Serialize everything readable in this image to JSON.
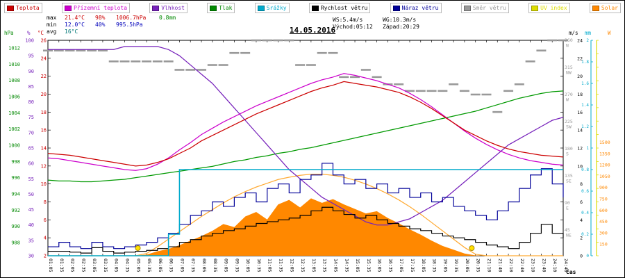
{
  "title": "14.05.2016",
  "xlabel": "čas",
  "legend": {
    "items": [
      {
        "key": "temperature",
        "label": "Teplota",
        "color": "#cc0000"
      },
      {
        "key": "ground-temperature",
        "label": "Přízemní teplota",
        "color": "#cc00cc"
      },
      {
        "key": "humidity",
        "label": "Vlhkost",
        "color": "#7722bb"
      },
      {
        "key": "pressure",
        "label": "Tlak",
        "color": "#008800"
      },
      {
        "key": "rain",
        "label": "Srážky",
        "color": "#00aacc"
      },
      {
        "key": "wind-speed",
        "label": "Rychlost větru",
        "color": "#000000"
      },
      {
        "key": "wind-gust",
        "label": "Náraz větru",
        "color": "#000099"
      },
      {
        "key": "wind-direction",
        "label": "Směr větru",
        "color": "#999999"
      },
      {
        "key": "uv-index",
        "label": "UV index",
        "color": "#dddd00"
      },
      {
        "key": "solar",
        "label": "Solar",
        "color": "#ff8800"
      }
    ]
  },
  "stats": {
    "max_label": "max",
    "max_temp": "21.4°C",
    "max_humidity": "98%",
    "max_pressure": "1006.7hPa",
    "max_rain": "0.8mm",
    "min_label": "min",
    "min_temp": "12.0°C",
    "min_humidity": "40%",
    "min_pressure": "995.5hPa",
    "avg_label": "avg",
    "avg_temp": "16°C",
    "wind_speed": "WS:5.4m/s",
    "wind_gust": "WG:10.3m/s",
    "sunrise": "Východ:05:12",
    "sunset": "Západ:20:29"
  },
  "axes": {
    "hpa": {
      "header": "hPa",
      "color": "#008800",
      "labels": [
        1012,
        1010,
        1008,
        1006,
        1004,
        1002,
        1000,
        998,
        996,
        994,
        992,
        990,
        988
      ]
    },
    "humidity": {
      "header": "%",
      "color": "#7722bb",
      "labels": [
        100,
        95,
        90,
        85,
        80,
        75,
        70,
        65,
        60,
        55,
        50,
        45,
        40,
        35,
        30
      ]
    },
    "temp": {
      "header": "°C",
      "color": "#cc0000",
      "labels": [
        26,
        24,
        22,
        20,
        18,
        16,
        14,
        12,
        10,
        8,
        6,
        4,
        2
      ]
    },
    "wind_dir": {
      "color": "#999999",
      "labels": [
        {
          "deg": 360,
          "txt": "N"
        },
        {
          "deg": 315,
          "txt": "NW"
        },
        {
          "deg": 270,
          "txt": "W"
        },
        {
          "deg": 225,
          "txt": "SW"
        },
        {
          "deg": 180,
          "txt": "S"
        },
        {
          "deg": 135,
          "txt": "SE"
        },
        {
          "deg": 90,
          "txt": "E"
        },
        {
          "deg": 45,
          "txt": "NE"
        }
      ]
    },
    "wind": {
      "header": "m/s",
      "color": "#000000",
      "labels": [
        24,
        22,
        20,
        18,
        16,
        14,
        12,
        10,
        8,
        6,
        4,
        2,
        0
      ]
    },
    "rain": {
      "header": "mm",
      "color": "#00aacc",
      "labels": [
        2,
        1.8,
        1.6,
        1.4,
        1.2,
        1,
        0.8,
        0.6,
        0.4,
        0.2,
        0
      ]
    },
    "solar": {
      "header": "W",
      "color": "#ff8800",
      "labels": [
        1500,
        1350,
        1200,
        1050,
        900,
        750,
        600,
        450,
        300,
        150
      ]
    }
  },
  "chart_data": {
    "type": "line",
    "title": "14.05.2016",
    "x": [
      "01:05",
      "01:35",
      "02:05",
      "02:35",
      "03:05",
      "03:35",
      "04:05",
      "04:35",
      "05:05",
      "05:35",
      "06:05",
      "06:35",
      "07:05",
      "07:35",
      "08:05",
      "08:35",
      "09:05",
      "09:35",
      "10:05",
      "10:35",
      "11:05",
      "11:35",
      "12:05",
      "12:35",
      "13:05",
      "13:35",
      "14:05",
      "14:35",
      "15:05",
      "15:35",
      "16:05",
      "16:35",
      "17:05",
      "17:35",
      "18:05",
      "18:35",
      "19:05",
      "19:35",
      "20:05",
      "20:35",
      "21:10",
      "21:40",
      "22:10",
      "22:40",
      "23:10",
      "23:40",
      "24:10",
      "24:40"
    ],
    "axis_ranges": {
      "temp": [
        2,
        26
      ],
      "humidity": [
        30,
        100
      ],
      "pressure": [
        988,
        1012
      ],
      "rain": [
        0,
        2
      ],
      "wind": [
        0,
        24
      ],
      "wind_dir": [
        0,
        360
      ],
      "solar": [
        0,
        1500
      ]
    },
    "series": [
      {
        "key": "solar",
        "name": "Solar",
        "unit": "W",
        "color": "#ff8800",
        "axis": "solar",
        "style": "area",
        "values": [
          0,
          0,
          0,
          0,
          0,
          0,
          0,
          0,
          0,
          15,
          60,
          90,
          140,
          200,
          260,
          330,
          420,
          380,
          520,
          580,
          480,
          680,
          740,
          640,
          760,
          700,
          750,
          680,
          620,
          560,
          590,
          500,
          430,
          350,
          280,
          200,
          130,
          80,
          30,
          5,
          0,
          0,
          0,
          0,
          0,
          0,
          0,
          0
        ]
      },
      {
        "key": "solar-max",
        "name": "Solar max",
        "unit": "W",
        "color": "#ffaa33",
        "axis": "solar",
        "style": "line",
        "values": [
          0,
          0,
          0,
          0,
          0,
          0,
          0,
          0,
          0,
          30,
          120,
          220,
          320,
          420,
          520,
          610,
          700,
          780,
          850,
          910,
          960,
          1010,
          1040,
          1065,
          1080,
          1080,
          1065,
          1040,
          1000,
          950,
          890,
          820,
          740,
          650,
          550,
          440,
          330,
          220,
          110,
          20,
          0,
          0,
          0,
          0,
          0,
          0,
          0,
          0
        ]
      },
      {
        "key": "wind-direction",
        "name": "Směr větru",
        "unit": "°",
        "color": "#999999",
        "axis": "wind_dir",
        "style": "dash",
        "values": [
          343,
          343,
          343,
          343,
          343,
          343,
          325,
          325,
          325,
          325,
          325,
          325,
          311,
          311,
          311,
          319,
          319,
          339,
          339,
          360,
          360,
          360,
          360,
          319,
          319,
          339,
          339,
          299,
          299,
          311,
          299,
          287,
          287,
          276,
          276,
          276,
          276,
          287,
          276,
          270,
          270,
          241,
          276,
          287,
          325,
          343,
          360,
          360
        ]
      },
      {
        "key": "pressure",
        "name": "Tlak",
        "unit": "hPa",
        "color": "#009900",
        "axis": "hpa",
        "style": "line",
        "values": [
          995.7,
          995.6,
          995.6,
          995.5,
          995.5,
          995.6,
          995.7,
          995.8,
          996.0,
          996.2,
          996.4,
          996.6,
          996.8,
          997.0,
          997.2,
          997.4,
          997.7,
          998.0,
          998.2,
          998.5,
          998.7,
          999.0,
          999.2,
          999.5,
          999.7,
          1000.0,
          1000.3,
          1000.6,
          1000.9,
          1001.2,
          1001.5,
          1001.8,
          1002.1,
          1002.4,
          1002.7,
          1003.0,
          1003.3,
          1003.6,
          1003.9,
          1004.2,
          1004.6,
          1005.0,
          1005.4,
          1005.8,
          1006.1,
          1006.4,
          1006.6,
          1006.7
        ]
      },
      {
        "key": "humidity",
        "name": "Vlhkost",
        "unit": "%",
        "color": "#7722bb",
        "axis": "humidity",
        "style": "line",
        "values": [
          97,
          97,
          97,
          97,
          97,
          97,
          97,
          98,
          98,
          98,
          98,
          97,
          95,
          92,
          89,
          86,
          82,
          78,
          74,
          70,
          66,
          62,
          58,
          55,
          52,
          49,
          47,
          45,
          43,
          41,
          40,
          40,
          41,
          42,
          44,
          46,
          48,
          51,
          54,
          57,
          60,
          63,
          66,
          68,
          70,
          72,
          74,
          75
        ]
      },
      {
        "key": "ground-temperature",
        "name": "Přízemní teplota",
        "unit": "°C",
        "color": "#cc00cc",
        "axis": "temp",
        "style": "line",
        "values": [
          12.9,
          12.8,
          12.6,
          12.4,
          12.2,
          12.0,
          11.8,
          11.6,
          11.5,
          11.7,
          12.2,
          12.9,
          13.8,
          14.6,
          15.5,
          16.2,
          16.9,
          17.5,
          18.1,
          18.7,
          19.2,
          19.7,
          20.2,
          20.7,
          21.2,
          21.6,
          21.9,
          22.3,
          22.1,
          21.8,
          21.5,
          21.1,
          20.7,
          20.1,
          19.4,
          18.6,
          17.7,
          16.8,
          15.9,
          15.1,
          14.4,
          13.8,
          13.3,
          12.9,
          12.6,
          12.4,
          12.2,
          12.1
        ]
      },
      {
        "key": "temperature",
        "name": "Teplota",
        "unit": "°C",
        "color": "#cc0000",
        "axis": "temp",
        "style": "line",
        "values": [
          13.4,
          13.3,
          13.2,
          13.0,
          12.8,
          12.6,
          12.4,
          12.2,
          12.0,
          12.1,
          12.4,
          12.8,
          13.4,
          14.0,
          14.8,
          15.4,
          16.0,
          16.6,
          17.2,
          17.8,
          18.3,
          18.8,
          19.3,
          19.8,
          20.3,
          20.7,
          21.0,
          21.4,
          21.2,
          21.0,
          20.8,
          20.5,
          20.2,
          19.7,
          19.1,
          18.4,
          17.6,
          16.8,
          16.0,
          15.4,
          14.8,
          14.3,
          13.9,
          13.6,
          13.4,
          13.2,
          13.1,
          13.0
        ]
      },
      {
        "key": "wind-gust",
        "name": "Náraz větru",
        "unit": "m/s",
        "color": "#000099",
        "axis": "wind",
        "style": "step",
        "values": [
          1.0,
          1.5,
          1.0,
          0.8,
          1.5,
          1.0,
          0.8,
          1.0,
          1.2,
          1.5,
          2.0,
          2.5,
          3.5,
          4.5,
          5.0,
          6.0,
          5.5,
          6.5,
          7.0,
          6.0,
          7.5,
          8.0,
          7.0,
          8.5,
          9.0,
          10.3,
          9.0,
          8.0,
          8.5,
          7.5,
          8.0,
          7.0,
          7.5,
          6.5,
          7.0,
          6.0,
          6.5,
          5.5,
          5.0,
          4.5,
          4.0,
          5.0,
          6.0,
          7.5,
          9.0,
          9.7,
          8.0,
          6.5
        ]
      },
      {
        "key": "wind-speed",
        "name": "Rychlost větru",
        "unit": "m/s",
        "color": "#000000",
        "axis": "wind",
        "style": "step",
        "values": [
          0.5,
          0.5,
          0.4,
          0.3,
          0.9,
          0.5,
          0.3,
          0.4,
          0.5,
          0.6,
          0.8,
          1.0,
          1.5,
          1.8,
          2.2,
          2.5,
          2.8,
          3.0,
          3.3,
          3.6,
          3.8,
          4.0,
          4.2,
          4.5,
          5.0,
          5.4,
          5.0,
          4.6,
          4.2,
          4.5,
          4.0,
          3.6,
          3.3,
          3.0,
          2.8,
          2.5,
          2.2,
          2.0,
          1.8,
          1.5,
          1.2,
          1.0,
          0.8,
          1.5,
          2.5,
          3.5,
          2.5,
          2.0
        ]
      },
      {
        "key": "rain",
        "name": "Srážky",
        "unit": "mm",
        "color": "#00aacc",
        "axis": "rain",
        "style": "step",
        "values": [
          0,
          0,
          0,
          0,
          0,
          0,
          0,
          0,
          0,
          0,
          0,
          0.2,
          0.8,
          0.8,
          0.8,
          0.8,
          0.8,
          0.8,
          0.8,
          0.8,
          0.8,
          0.8,
          0.8,
          0.8,
          0.8,
          0.8,
          0.8,
          0.8,
          0.8,
          0.8,
          0.8,
          0.8,
          0.8,
          0.8,
          0.8,
          0.8,
          0.8,
          0.8,
          0.8,
          0.8,
          0.8,
          0.8,
          0.8,
          0.8,
          0.8,
          0.8,
          0.8,
          0.8
        ]
      }
    ],
    "markers": {
      "sunrise_time": "05:12",
      "sunset_time": "20:29",
      "color": "#ffe000"
    }
  }
}
